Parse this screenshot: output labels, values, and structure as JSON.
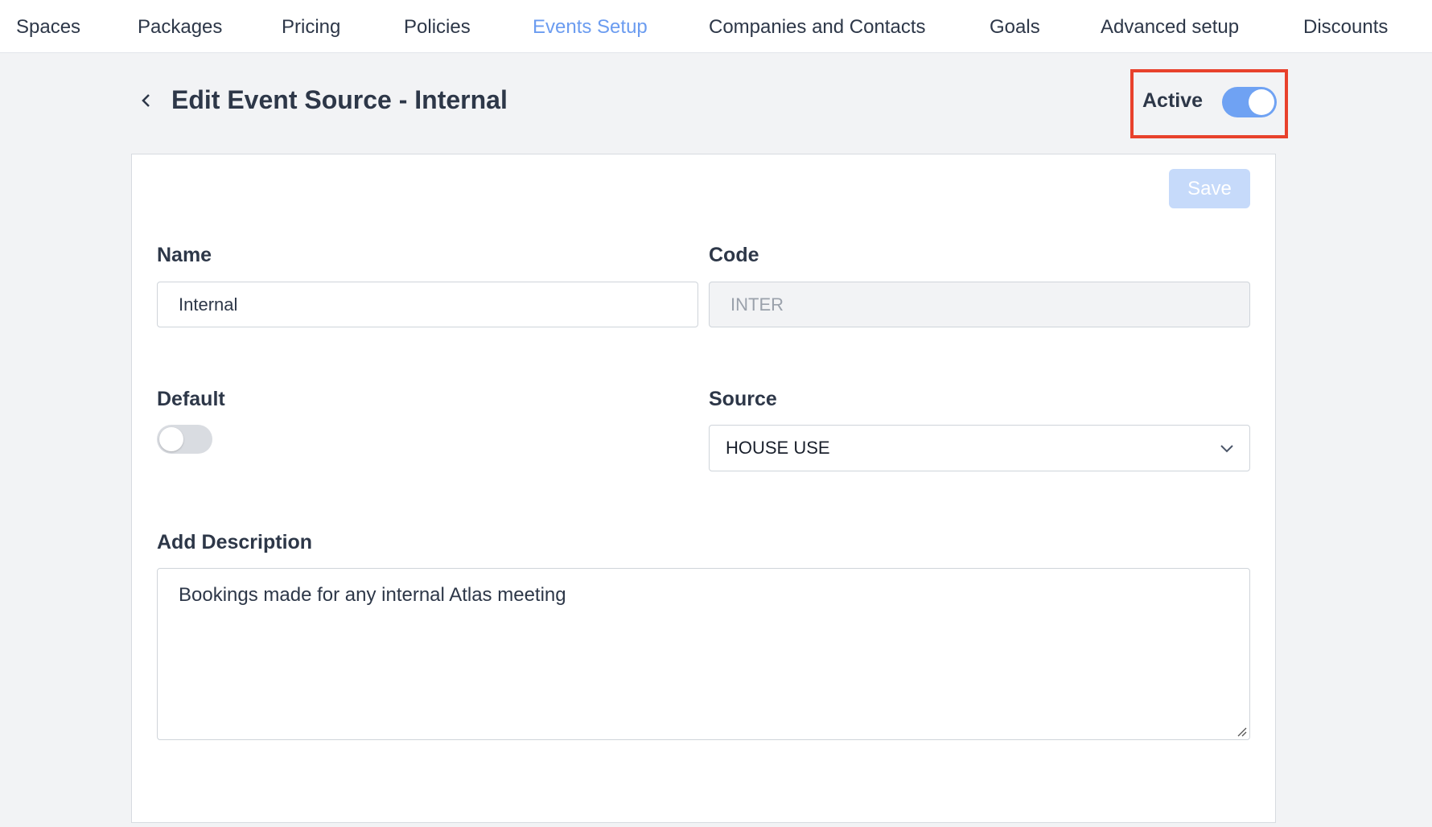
{
  "nav": {
    "items": [
      {
        "label": "Spaces"
      },
      {
        "label": "Packages"
      },
      {
        "label": "Pricing"
      },
      {
        "label": "Policies"
      },
      {
        "label": "Events Setup",
        "active": true
      },
      {
        "label": "Companies and Contacts"
      },
      {
        "label": "Goals"
      },
      {
        "label": "Advanced setup"
      },
      {
        "label": "Discounts"
      }
    ]
  },
  "header": {
    "title": "Edit Event Source - Internal",
    "active_label": "Active",
    "active_on": true,
    "highlight_color": "#e8412c"
  },
  "form": {
    "save_label": "Save",
    "name_label": "Name",
    "name_value": "Internal",
    "code_label": "Code",
    "code_value": "INTER",
    "default_label": "Default",
    "default_on": false,
    "source_label": "Source",
    "source_value": "HOUSE USE",
    "description_label": "Add Description",
    "description_value": "Bookings made for any internal Atlas meeting"
  },
  "colors": {
    "accent": "#6b9cf0"
  }
}
